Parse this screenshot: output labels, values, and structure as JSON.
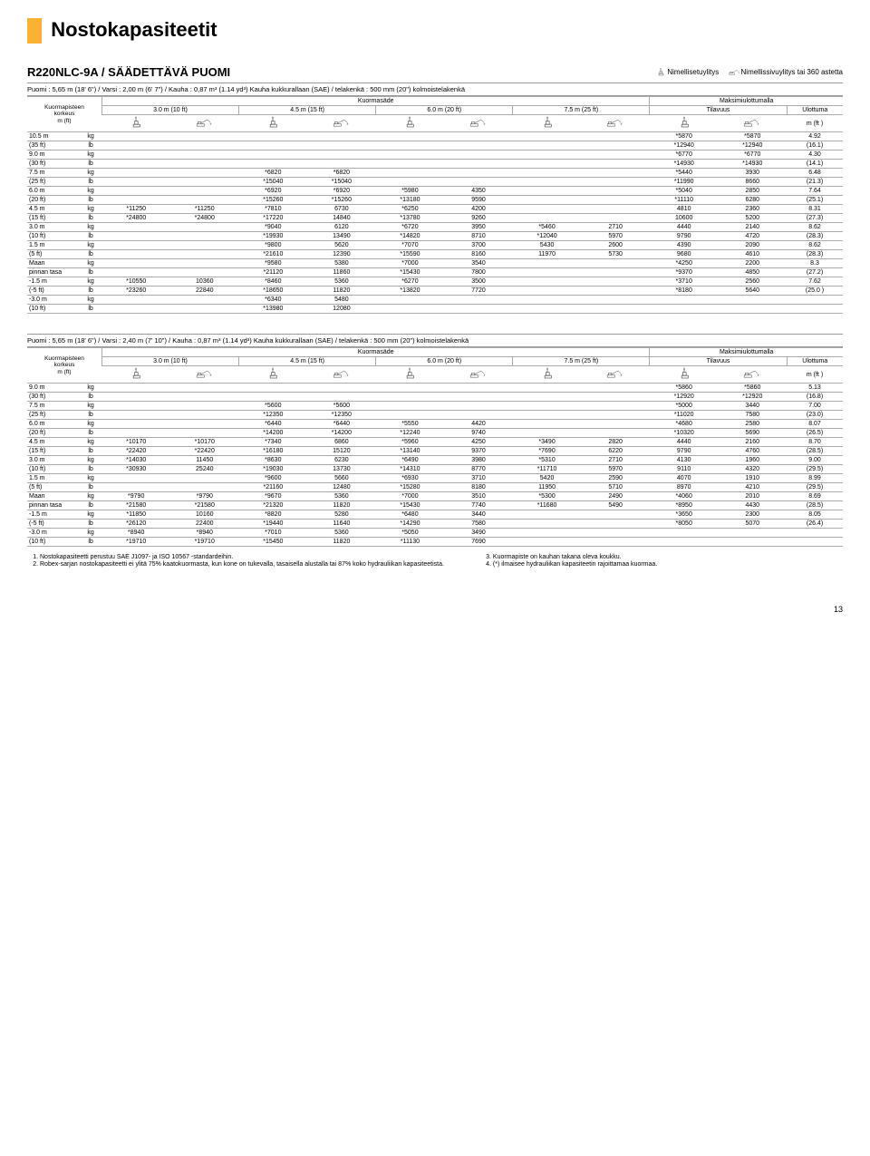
{
  "title": "Nostokapasiteetit",
  "section": "R220NLC-9A / SÄÄDETTÄVÄ PUOMI",
  "legend1": "Nimellisetuylitys",
  "legend2": "Nimellissivuylitys tai 360 astetta",
  "puomi1": "Puomi : 5,65 m (18' 6\") / Varsi : 2,00 m (6' 7\") / Kauha : 0,87 m³ (1.14 yd³) Kauha kukkurallaan (SAE) / telakenkä : 500 mm (20\") kolmoistelakenkä",
  "puomi2": "Puomi : 5,65 m (18' 6\") / Varsi : 2,40 m (7' 10\") / Kauha : 0,87 m³ (1.14 yd³) Kauha kukkurallaan (SAE) / telakenkä : 500 mm (20\") kolmoistelakenkä",
  "hdr_rowlabel": "Kuormapisteen korkeus m (ft)",
  "hdr_kuormasade": "Kuormasäde",
  "hdr_maksimi": "Maksimiulottumalla",
  "hdr_tilavuus": "Tilavuus",
  "hdr_ulottuma": "Ulottuma",
  "hdr_mft": "m (ft )",
  "col_headers": [
    "3.0 m (10 ft)",
    "4.5 m (15 ft)",
    "6.0 m (20 ft)",
    "7.5 m (25 ft)"
  ],
  "table1_rows": [
    [
      "10.5 m",
      "kg",
      "",
      "",
      "",
      "",
      "",
      "",
      "",
      "",
      "*5870",
      "*5870",
      "4.92"
    ],
    [
      "(35 ft)",
      "lb",
      "",
      "",
      "",
      "",
      "",
      "",
      "",
      "",
      "*12940",
      "*12940",
      "(16.1)"
    ],
    [
      "9.0 m",
      "kg",
      "",
      "",
      "",
      "",
      "",
      "",
      "",
      "",
      "*6770",
      "*6770",
      "4.30"
    ],
    [
      "(30 ft)",
      "lb",
      "",
      "",
      "",
      "",
      "",
      "",
      "",
      "",
      "*14930",
      "*14930",
      "(14.1)"
    ],
    [
      "7.5 m",
      "kg",
      "",
      "",
      "*6820",
      "*6820",
      "",
      "",
      "",
      "",
      "*5440",
      "3930",
      "6.48"
    ],
    [
      "(25 ft)",
      "lb",
      "",
      "",
      "*15040",
      "*15040",
      "",
      "",
      "",
      "",
      "*11990",
      "8660",
      "(21.3)"
    ],
    [
      "6.0 m",
      "kg",
      "",
      "",
      "*6920",
      "*6920",
      "*5980",
      "4350",
      "",
      "",
      "*5040",
      "2850",
      "7.64"
    ],
    [
      "(20 ft)",
      "lb",
      "",
      "",
      "*15260",
      "*15260",
      "*13180",
      "9590",
      "",
      "",
      "*11110",
      "6280",
      "(25.1)"
    ],
    [
      "4.5 m",
      "kg",
      "*11250",
      "*11250",
      "*7810",
      "6730",
      "*6250",
      "4200",
      "",
      "",
      "4810",
      "2360",
      "8.31"
    ],
    [
      "(15 ft)",
      "lb",
      "*24800",
      "*24800",
      "*17220",
      "14840",
      "*13780",
      "9260",
      "",
      "",
      "10600",
      "5200",
      "(27.3)"
    ],
    [
      "3.0 m",
      "kg",
      "",
      "",
      "*9040",
      "6120",
      "*6720",
      "3950",
      "*5460",
      "2710",
      "4440",
      "2140",
      "8.62"
    ],
    [
      "(10 ft)",
      "lb",
      "",
      "",
      "*19930",
      "13490",
      "*14820",
      "8710",
      "*12040",
      "5970",
      "9790",
      "4720",
      "(28.3)"
    ],
    [
      "1.5 m",
      "kg",
      "",
      "",
      "*9800",
      "5620",
      "*7070",
      "3700",
      "5430",
      "2600",
      "4390",
      "2090",
      "8.62"
    ],
    [
      "(5 ft)",
      "lb",
      "",
      "",
      "*21610",
      "12390",
      "*15590",
      "8160",
      "11970",
      "5730",
      "9680",
      "4610",
      "(28.3)"
    ],
    [
      "Maan",
      "kg",
      "",
      "",
      "*9580",
      "5380",
      "*7000",
      "3540",
      "",
      "",
      "*4250",
      "2200",
      "8.3"
    ],
    [
      "pinnan tasa",
      "lb",
      "",
      "",
      "*21120",
      "11860",
      "*15430",
      "7800",
      "",
      "",
      "*9370",
      "4850",
      "(27.2)"
    ],
    [
      "-1.5 m",
      "kg",
      "*10550",
      "10360",
      "*8460",
      "5360",
      "*6270",
      "3500",
      "",
      "",
      "*3710",
      "2560",
      "7.62"
    ],
    [
      "(-5 ft)",
      "lb",
      "*23260",
      "22840",
      "*18650",
      "11820",
      "*13820",
      "7720",
      "",
      "",
      "*8180",
      "5640",
      "(25.0 )"
    ],
    [
      "-3.0 m",
      "kg",
      "",
      "",
      "*6340",
      "5480",
      "",
      "",
      "",
      "",
      "",
      "",
      ""
    ],
    [
      "(10 ft)",
      "lb",
      "",
      "",
      "*13980",
      "12080",
      "",
      "",
      "",
      "",
      "",
      "",
      ""
    ]
  ],
  "table2_rows": [
    [
      "9.0 m",
      "kg",
      "",
      "",
      "",
      "",
      "",
      "",
      "",
      "",
      "*5860",
      "*5860",
      "5.13"
    ],
    [
      "(30 ft)",
      "lb",
      "",
      "",
      "",
      "",
      "",
      "",
      "",
      "",
      "*12920",
      "*12920",
      "(16.8)"
    ],
    [
      "7.5 m",
      "kg",
      "",
      "",
      "*5600",
      "*5600",
      "",
      "",
      "",
      "",
      "*5000",
      "3440",
      "7.00"
    ],
    [
      "(25 ft)",
      "lb",
      "",
      "",
      "*12350",
      "*12350",
      "",
      "",
      "",
      "",
      "*11020",
      "7580",
      "(23.0)"
    ],
    [
      "6.0 m",
      "kg",
      "",
      "",
      "*6440",
      "*6440",
      "*5550",
      "4420",
      "",
      "",
      "*4680",
      "2580",
      "8.07"
    ],
    [
      "(20 ft)",
      "lb",
      "",
      "",
      "*14200",
      "*14200",
      "*12240",
      "9740",
      "",
      "",
      "*10320",
      "5690",
      "(26.5)"
    ],
    [
      "4.5 m",
      "kg",
      "*10170",
      "*10170",
      "*7340",
      "6860",
      "*5960",
      "4250",
      "*3490",
      "2820",
      "4440",
      "2160",
      "8.70"
    ],
    [
      "(15 ft)",
      "lb",
      "*22420",
      "*22420",
      "*16180",
      "15120",
      "*13140",
      "9370",
      "*7690",
      "6220",
      "9790",
      "4760",
      "(28.5)"
    ],
    [
      "3.0 m",
      "kg",
      "*14030",
      "11450",
      "*8630",
      "6230",
      "*6490",
      "3980",
      "*5310",
      "2710",
      "4130",
      "1960",
      "9.00"
    ],
    [
      "(10 ft)",
      "lb",
      "*30930",
      "25240",
      "*19030",
      "13730",
      "*14310",
      "8770",
      "*11710",
      "5970",
      "9110",
      "4320",
      "(29.5)"
    ],
    [
      "1.5 m",
      "kg",
      "",
      "",
      "*9600",
      "5660",
      "*6930",
      "3710",
      "5420",
      "2590",
      "4070",
      "1910",
      "8.99"
    ],
    [
      "(5 ft)",
      "lb",
      "",
      "",
      "*21160",
      "12480",
      "*15280",
      "8180",
      "11950",
      "5710",
      "8970",
      "4210",
      "(29.5)"
    ],
    [
      "Maan",
      "kg",
      "*9790",
      "*9790",
      "*9670",
      "5360",
      "*7000",
      "3510",
      "*5300",
      "2490",
      "*4060",
      "2010",
      "8.69"
    ],
    [
      "pinnan tasa",
      "lb",
      "*21580",
      "*21580",
      "*21320",
      "11820",
      "*15430",
      "7740",
      "*11680",
      "5490",
      "*8950",
      "4430",
      "(28.5)"
    ],
    [
      "-1.5 m",
      "kg",
      "*11850",
      "10160",
      "*8820",
      "5280",
      "*6480",
      "3440",
      "",
      "",
      "*3650",
      "2300",
      "8.05"
    ],
    [
      "(-5 ft)",
      "lb",
      "*26120",
      "22400",
      "*19440",
      "11640",
      "*14290",
      "7580",
      "",
      "",
      "*8050",
      "5070",
      "(26.4)"
    ],
    [
      "-3.0 m",
      "kg",
      "*8940",
      "*8940",
      "*7010",
      "5360",
      "*5050",
      "3490",
      "",
      "",
      "",
      "",
      ""
    ],
    [
      "(10 ft)",
      "lb",
      "*19710",
      "*19710",
      "*15450",
      "11820",
      "*11130",
      "7690",
      "",
      "",
      "",
      "",
      ""
    ]
  ],
  "footnotes_left": [
    "Nostokapasiteetti perustuu SAE J1097- ja ISO 10567 -standardeihin.",
    "Robex-sarjan nostokapasiteetti ei ylitä 75% kaatokuormasta, kun kone on tukevalla, tasaisella alustalla tai 87% koko hydrauliikan kapasiteetista."
  ],
  "footnotes_right": [
    "Kuormapiste on kauhan takana oleva koukku.",
    "(*) ilmaisee hydrauliikan kapasiteetin rajoittamaa kuormaa."
  ],
  "page_number": "13"
}
